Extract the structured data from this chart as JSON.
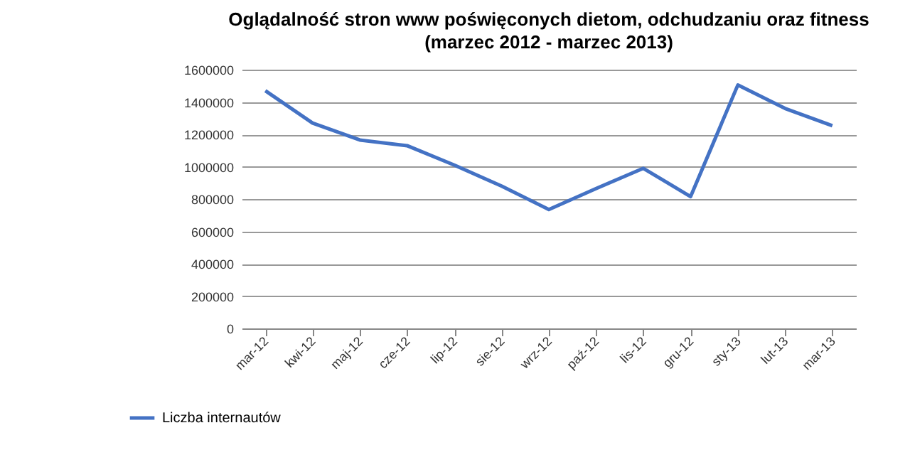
{
  "chart_data": {
    "type": "line",
    "title": "Oglądalność  stron www poświęconych dietom, odchudzaniu  oraz fitness",
    "subtitle": "(marzec 2012 - marzec 2013)",
    "categories": [
      "mar-12",
      "kwi-12",
      "maj-12",
      "cze-12",
      "lip-12",
      "sie-12",
      "wrz-12",
      "paź-12",
      "lis-12",
      "gru-12",
      "sty-13",
      "lut-13",
      "mar-13"
    ],
    "series": [
      {
        "name": "Liczba internautów",
        "color": "#4472c4",
        "values": [
          1470000,
          1270000,
          1165000,
          1130000,
          1010000,
          880000,
          735000,
          865000,
          990000,
          815000,
          1505000,
          1360000,
          1253000
        ]
      }
    ],
    "ylim": [
      0,
      1600000
    ],
    "yticks": [
      0,
      200000,
      400000,
      600000,
      800000,
      1000000,
      1200000,
      1400000,
      1600000
    ],
    "grid": "y",
    "legend": "bottom left",
    "marker": "none",
    "line_style": "solid"
  }
}
